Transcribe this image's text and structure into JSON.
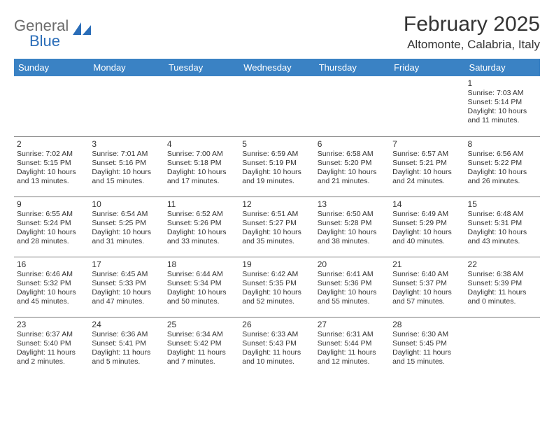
{
  "logo": {
    "word1": "General",
    "word2": "Blue"
  },
  "title": "February 2025",
  "location": "Altomonte, Calabria, Italy",
  "colors": {
    "header_bg": "#3a82c4",
    "header_text": "#ffffff",
    "border": "#7a7a7a",
    "text": "#333333",
    "logo_gray": "#6b6b6b",
    "logo_blue": "#2a6db8"
  },
  "weekdays": [
    "Sunday",
    "Monday",
    "Tuesday",
    "Wednesday",
    "Thursday",
    "Friday",
    "Saturday"
  ],
  "grid": [
    [
      null,
      null,
      null,
      null,
      null,
      null,
      {
        "n": "1",
        "sr": "Sunrise: 7:03 AM",
        "ss": "Sunset: 5:14 PM",
        "d1": "Daylight: 10 hours",
        "d2": "and 11 minutes."
      }
    ],
    [
      {
        "n": "2",
        "sr": "Sunrise: 7:02 AM",
        "ss": "Sunset: 5:15 PM",
        "d1": "Daylight: 10 hours",
        "d2": "and 13 minutes."
      },
      {
        "n": "3",
        "sr": "Sunrise: 7:01 AM",
        "ss": "Sunset: 5:16 PM",
        "d1": "Daylight: 10 hours",
        "d2": "and 15 minutes."
      },
      {
        "n": "4",
        "sr": "Sunrise: 7:00 AM",
        "ss": "Sunset: 5:18 PM",
        "d1": "Daylight: 10 hours",
        "d2": "and 17 minutes."
      },
      {
        "n": "5",
        "sr": "Sunrise: 6:59 AM",
        "ss": "Sunset: 5:19 PM",
        "d1": "Daylight: 10 hours",
        "d2": "and 19 minutes."
      },
      {
        "n": "6",
        "sr": "Sunrise: 6:58 AM",
        "ss": "Sunset: 5:20 PM",
        "d1": "Daylight: 10 hours",
        "d2": "and 21 minutes."
      },
      {
        "n": "7",
        "sr": "Sunrise: 6:57 AM",
        "ss": "Sunset: 5:21 PM",
        "d1": "Daylight: 10 hours",
        "d2": "and 24 minutes."
      },
      {
        "n": "8",
        "sr": "Sunrise: 6:56 AM",
        "ss": "Sunset: 5:22 PM",
        "d1": "Daylight: 10 hours",
        "d2": "and 26 minutes."
      }
    ],
    [
      {
        "n": "9",
        "sr": "Sunrise: 6:55 AM",
        "ss": "Sunset: 5:24 PM",
        "d1": "Daylight: 10 hours",
        "d2": "and 28 minutes."
      },
      {
        "n": "10",
        "sr": "Sunrise: 6:54 AM",
        "ss": "Sunset: 5:25 PM",
        "d1": "Daylight: 10 hours",
        "d2": "and 31 minutes."
      },
      {
        "n": "11",
        "sr": "Sunrise: 6:52 AM",
        "ss": "Sunset: 5:26 PM",
        "d1": "Daylight: 10 hours",
        "d2": "and 33 minutes."
      },
      {
        "n": "12",
        "sr": "Sunrise: 6:51 AM",
        "ss": "Sunset: 5:27 PM",
        "d1": "Daylight: 10 hours",
        "d2": "and 35 minutes."
      },
      {
        "n": "13",
        "sr": "Sunrise: 6:50 AM",
        "ss": "Sunset: 5:28 PM",
        "d1": "Daylight: 10 hours",
        "d2": "and 38 minutes."
      },
      {
        "n": "14",
        "sr": "Sunrise: 6:49 AM",
        "ss": "Sunset: 5:29 PM",
        "d1": "Daylight: 10 hours",
        "d2": "and 40 minutes."
      },
      {
        "n": "15",
        "sr": "Sunrise: 6:48 AM",
        "ss": "Sunset: 5:31 PM",
        "d1": "Daylight: 10 hours",
        "d2": "and 43 minutes."
      }
    ],
    [
      {
        "n": "16",
        "sr": "Sunrise: 6:46 AM",
        "ss": "Sunset: 5:32 PM",
        "d1": "Daylight: 10 hours",
        "d2": "and 45 minutes."
      },
      {
        "n": "17",
        "sr": "Sunrise: 6:45 AM",
        "ss": "Sunset: 5:33 PM",
        "d1": "Daylight: 10 hours",
        "d2": "and 47 minutes."
      },
      {
        "n": "18",
        "sr": "Sunrise: 6:44 AM",
        "ss": "Sunset: 5:34 PM",
        "d1": "Daylight: 10 hours",
        "d2": "and 50 minutes."
      },
      {
        "n": "19",
        "sr": "Sunrise: 6:42 AM",
        "ss": "Sunset: 5:35 PM",
        "d1": "Daylight: 10 hours",
        "d2": "and 52 minutes."
      },
      {
        "n": "20",
        "sr": "Sunrise: 6:41 AM",
        "ss": "Sunset: 5:36 PM",
        "d1": "Daylight: 10 hours",
        "d2": "and 55 minutes."
      },
      {
        "n": "21",
        "sr": "Sunrise: 6:40 AM",
        "ss": "Sunset: 5:37 PM",
        "d1": "Daylight: 10 hours",
        "d2": "and 57 minutes."
      },
      {
        "n": "22",
        "sr": "Sunrise: 6:38 AM",
        "ss": "Sunset: 5:39 PM",
        "d1": "Daylight: 11 hours",
        "d2": "and 0 minutes."
      }
    ],
    [
      {
        "n": "23",
        "sr": "Sunrise: 6:37 AM",
        "ss": "Sunset: 5:40 PM",
        "d1": "Daylight: 11 hours",
        "d2": "and 2 minutes."
      },
      {
        "n": "24",
        "sr": "Sunrise: 6:36 AM",
        "ss": "Sunset: 5:41 PM",
        "d1": "Daylight: 11 hours",
        "d2": "and 5 minutes."
      },
      {
        "n": "25",
        "sr": "Sunrise: 6:34 AM",
        "ss": "Sunset: 5:42 PM",
        "d1": "Daylight: 11 hours",
        "d2": "and 7 minutes."
      },
      {
        "n": "26",
        "sr": "Sunrise: 6:33 AM",
        "ss": "Sunset: 5:43 PM",
        "d1": "Daylight: 11 hours",
        "d2": "and 10 minutes."
      },
      {
        "n": "27",
        "sr": "Sunrise: 6:31 AM",
        "ss": "Sunset: 5:44 PM",
        "d1": "Daylight: 11 hours",
        "d2": "and 12 minutes."
      },
      {
        "n": "28",
        "sr": "Sunrise: 6:30 AM",
        "ss": "Sunset: 5:45 PM",
        "d1": "Daylight: 11 hours",
        "d2": "and 15 minutes."
      },
      null
    ]
  ]
}
